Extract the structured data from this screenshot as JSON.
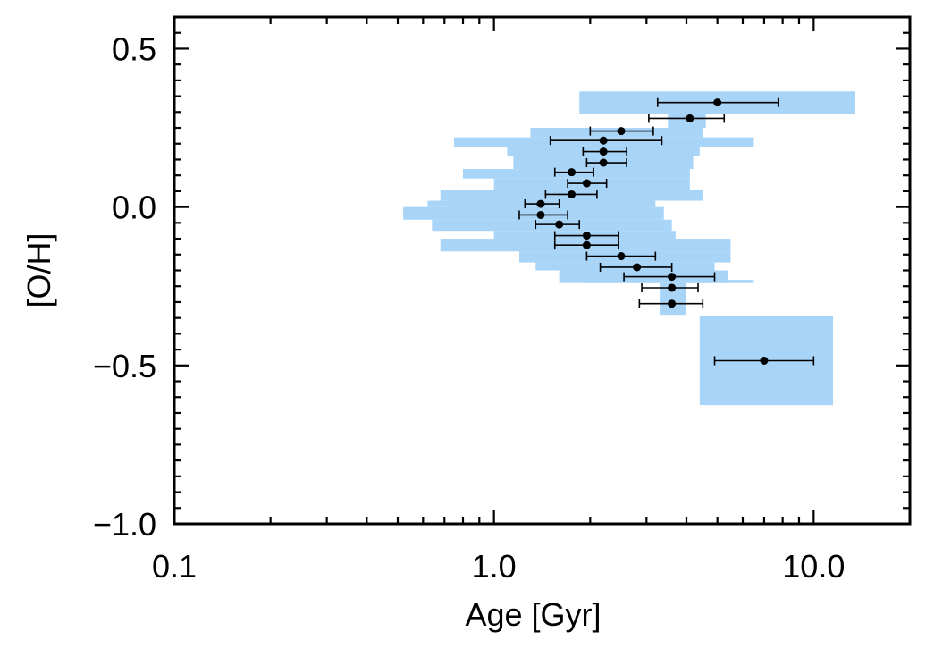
{
  "chart_data": {
    "type": "scatter",
    "xlabel": "Age [Gyr]",
    "ylabel": "[O/H]",
    "xscale": "log",
    "xlim": [
      0.1,
      20
    ],
    "ylim": [
      -1.0,
      0.6
    ],
    "x_ticks": [
      {
        "value": 0.1,
        "label": "0.1"
      },
      {
        "value": 1.0,
        "label": "1.0"
      },
      {
        "value": 10.0,
        "label": "10.0"
      }
    ],
    "y_ticks": [
      {
        "value": 0.5,
        "label": "0.5"
      },
      {
        "value": 0.0,
        "label": "0.0"
      },
      {
        "value": -0.5,
        "label": "−0.5"
      },
      {
        "value": -1.0,
        "label": "−1.0"
      }
    ],
    "y_minor_step": 0.1,
    "colors": {
      "points": "#000000",
      "regions": "#a8d4f8",
      "axes": "#000000"
    },
    "points": [
      {
        "x": 5.0,
        "y": 0.33,
        "xerr": [
          3.25,
          7.75
        ]
      },
      {
        "x": 4.1,
        "y": 0.28,
        "xerr": [
          3.05,
          5.25
        ]
      },
      {
        "x": 2.5,
        "y": 0.24,
        "xerr": [
          2.0,
          3.15
        ]
      },
      {
        "x": 2.2,
        "y": 0.21,
        "xerr": [
          1.5,
          3.35
        ]
      },
      {
        "x": 2.2,
        "y": 0.175,
        "xerr": [
          1.9,
          2.6
        ]
      },
      {
        "x": 2.2,
        "y": 0.14,
        "xerr": [
          1.95,
          2.6
        ]
      },
      {
        "x": 1.75,
        "y": 0.11,
        "xerr": [
          1.55,
          2.05
        ]
      },
      {
        "x": 1.95,
        "y": 0.075,
        "xerr": [
          1.7,
          2.25
        ]
      },
      {
        "x": 1.75,
        "y": 0.04,
        "xerr": [
          1.45,
          2.1
        ]
      },
      {
        "x": 1.4,
        "y": 0.01,
        "xerr": [
          1.25,
          1.6
        ]
      },
      {
        "x": 1.4,
        "y": -0.025,
        "xerr": [
          1.2,
          1.7
        ]
      },
      {
        "x": 1.6,
        "y": -0.055,
        "xerr": [
          1.35,
          1.85
        ]
      },
      {
        "x": 1.95,
        "y": -0.09,
        "xerr": [
          1.55,
          2.45
        ]
      },
      {
        "x": 1.95,
        "y": -0.12,
        "xerr": [
          1.55,
          2.45
        ]
      },
      {
        "x": 2.5,
        "y": -0.155,
        "xerr": [
          1.95,
          3.2
        ]
      },
      {
        "x": 2.8,
        "y": -0.19,
        "xerr": [
          2.15,
          3.6
        ]
      },
      {
        "x": 3.6,
        "y": -0.22,
        "xerr": [
          2.55,
          4.9
        ]
      },
      {
        "x": 3.6,
        "y": -0.255,
        "xerr": [
          2.9,
          4.35
        ]
      },
      {
        "x": 3.6,
        "y": -0.305,
        "xerr": [
          2.85,
          4.5
        ]
      },
      {
        "x": 7.0,
        "y": -0.485,
        "xerr": [
          4.9,
          10.0
        ]
      }
    ],
    "regions": [
      {
        "x": [
          1.85,
          13.5
        ],
        "y": [
          0.295,
          0.365
        ]
      },
      {
        "x": [
          3.5,
          4.6
        ],
        "y": [
          0.25,
          0.295
        ]
      },
      {
        "x": [
          1.3,
          4.5
        ],
        "y": [
          0.22,
          0.25
        ]
      },
      {
        "x": [
          0.75,
          6.5
        ],
        "y": [
          0.19,
          0.22
        ]
      },
      {
        "x": [
          1.1,
          4.4
        ],
        "y": [
          0.16,
          0.19
        ]
      },
      {
        "x": [
          1.15,
          4.2
        ],
        "y": [
          0.12,
          0.16
        ]
      },
      {
        "x": [
          0.8,
          4.1
        ],
        "y": [
          0.09,
          0.12
        ]
      },
      {
        "x": [
          1.0,
          4.1
        ],
        "y": [
          0.055,
          0.09
        ]
      },
      {
        "x": [
          0.68,
          4.5
        ],
        "y": [
          0.02,
          0.055
        ]
      },
      {
        "x": [
          0.62,
          3.2
        ],
        "y": [
          0.0,
          0.02
        ]
      },
      {
        "x": [
          0.52,
          3.4
        ],
        "y": [
          -0.04,
          0.0
        ]
      },
      {
        "x": [
          0.64,
          3.6
        ],
        "y": [
          -0.075,
          -0.04
        ]
      },
      {
        "x": [
          1.0,
          3.7
        ],
        "y": [
          -0.1,
          -0.075
        ]
      },
      {
        "x": [
          0.68,
          5.5
        ],
        "y": [
          -0.14,
          -0.1
        ]
      },
      {
        "x": [
          1.2,
          5.5
        ],
        "y": [
          -0.175,
          -0.14
        ]
      },
      {
        "x": [
          1.35,
          4.9
        ],
        "y": [
          -0.2,
          -0.175
        ]
      },
      {
        "x": [
          1.6,
          5.4
        ],
        "y": [
          -0.24,
          -0.2
        ]
      },
      {
        "x": [
          1.9,
          6.5
        ],
        "y": [
          -0.24,
          -0.24
        ]
      },
      {
        "x": [
          1.9,
          6.5
        ],
        "y": [
          -0.24,
          -0.23
        ]
      },
      {
        "x": [
          3.3,
          4.0
        ],
        "y": [
          -0.34,
          -0.24
        ]
      },
      {
        "x": [
          4.4,
          11.5
        ],
        "y": [
          -0.625,
          -0.345
        ]
      }
    ]
  }
}
